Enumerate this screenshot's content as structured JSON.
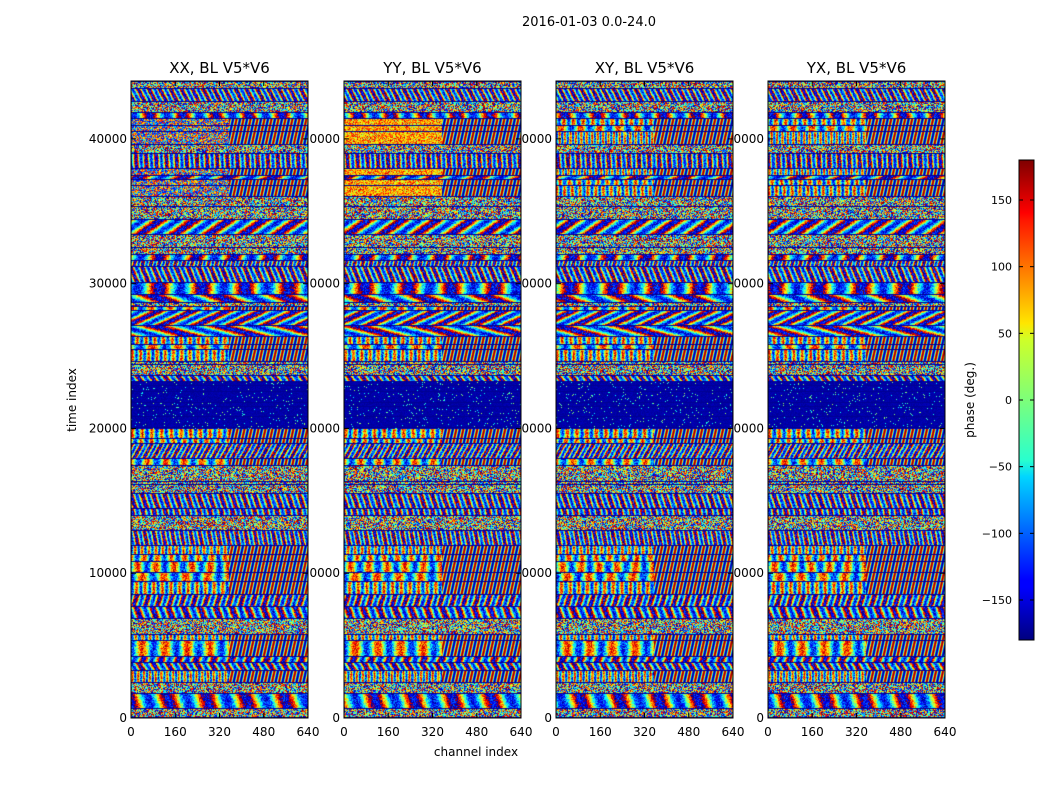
{
  "figure": {
    "suptitle": "2016-01-03 0.0-24.0",
    "xlabel": "channel index",
    "ylabel": "time index"
  },
  "chart_data": {
    "type": "heatmap",
    "x_range": [
      0,
      640
    ],
    "y_range": [
      0,
      44000
    ],
    "x_ticks": [
      0,
      160,
      320,
      480,
      640
    ],
    "y_ticks": [
      0,
      10000,
      20000,
      30000,
      40000
    ],
    "x_tick_labels": [
      "0",
      "160",
      "320",
      "480",
      "640"
    ],
    "y_tick_labels": [
      "0",
      "10000",
      "20000",
      "30000",
      "40000"
    ],
    "panels": [
      {
        "title": "XX, BL V5*V6",
        "y_tick_labels_visible": [
          "0",
          "10000",
          "20000",
          "30000",
          "40000"
        ]
      },
      {
        "title": "YY, BL V5*V6",
        "y_tick_labels_visible": [
          "0",
          "0000",
          "0000",
          "0000",
          "0000"
        ]
      },
      {
        "title": "XY, BL V5*V6",
        "y_tick_labels_visible": [
          "0",
          "0000",
          "0000",
          "0000",
          "0000"
        ]
      },
      {
        "title": "YX, BL V5*V6",
        "y_tick_labels_visible": [
          "0",
          "0000",
          "0000",
          "0000",
          "0000"
        ]
      }
    ],
    "colorbar": {
      "label": "phase (deg.)",
      "range": [
        -180,
        180
      ],
      "ticks": [
        -150,
        -100,
        -50,
        0,
        50,
        100,
        150
      ],
      "tick_labels": [
        "−150",
        "−100",
        "−50",
        "0",
        "50",
        "100",
        "150"
      ],
      "colormap": "jet"
    }
  }
}
